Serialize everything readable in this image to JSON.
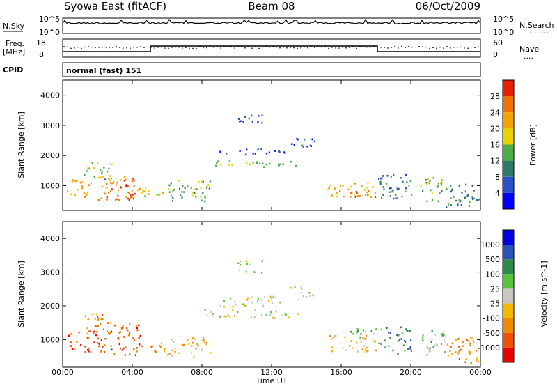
{
  "header": {
    "station": "Syowa East (fitACF)",
    "beam": "Beam 08",
    "date": "06/Oct/2009"
  },
  "strips": {
    "nsky_label": "N.Sky",
    "nsearch_label": "N.Search",
    "nsearch_legend": "........",
    "log_ticks": [
      "10^5",
      "10^0"
    ],
    "freq_label": "Freq.",
    "freq_unit": "[MHz]",
    "freq_ticks": [
      "18",
      "8"
    ],
    "nave_label": "Nave",
    "nave_legend": "....",
    "nave_ticks": [
      "60",
      "0"
    ],
    "cpid_label": "CPID",
    "cpid_value": "normal (fast) 151"
  },
  "chart_data": [
    {
      "type": "heatmap",
      "quantity": "power",
      "xlabel": "Time UT",
      "ylabel": "Slant Range [km]",
      "xticks": [
        "00:00",
        "04:00",
        "08:00",
        "12:00",
        "16:00",
        "20:00",
        "00:00"
      ],
      "xlim": [
        0,
        24
      ],
      "yticks": [
        "1000",
        "2000",
        "3000",
        "4000"
      ],
      "ylim": [
        180,
        4500
      ],
      "colorbar": {
        "label": "Power [dB]",
        "ticks": [
          "28",
          "24",
          "20",
          "16",
          "12",
          "8",
          "4"
        ],
        "colors": [
          "#0000ff",
          "#2a4fc8",
          "#2e7a6a",
          "#4cae48",
          "#e8d200",
          "#f4a400",
          "#f07000",
          "#e82000"
        ]
      },
      "regions": [
        {
          "t0": 0.2,
          "t1": 1.6,
          "r0": 650,
          "r1": 1250,
          "level": 5
        },
        {
          "t0": 1.2,
          "t1": 2.8,
          "r0": 1200,
          "r1": 1800,
          "level": 3
        },
        {
          "t0": 2.0,
          "t1": 4.2,
          "r0": 550,
          "r1": 1400,
          "level": 6
        },
        {
          "t0": 3.0,
          "t1": 4.5,
          "r0": 550,
          "r1": 800,
          "level": 7
        },
        {
          "t0": 4.2,
          "t1": 6.0,
          "r0": 650,
          "r1": 1000,
          "level": 4
        },
        {
          "t0": 6.0,
          "t1": 8.5,
          "r0": 500,
          "r1": 1200,
          "level": 3
        },
        {
          "t0": 8.5,
          "t1": 13.5,
          "r0": 1650,
          "r1": 1850,
          "level": 3
        },
        {
          "t0": 9.0,
          "t1": 13.0,
          "r0": 2050,
          "r1": 2250,
          "level": 1
        },
        {
          "t0": 10.0,
          "t1": 11.5,
          "r0": 3000,
          "r1": 3400,
          "level": 1
        },
        {
          "t0": 13.0,
          "t1": 14.5,
          "r0": 2200,
          "r1": 2600,
          "level": 1
        },
        {
          "t0": 15.2,
          "t1": 18.0,
          "r0": 650,
          "r1": 1150,
          "level": 5
        },
        {
          "t0": 16.5,
          "t1": 18.0,
          "r0": 650,
          "r1": 850,
          "level": 7
        },
        {
          "t0": 18.0,
          "t1": 20.0,
          "r0": 600,
          "r1": 1400,
          "level": 2
        },
        {
          "t0": 20.5,
          "t1": 22.0,
          "r0": 500,
          "r1": 1300,
          "level": 3
        },
        {
          "t0": 22.0,
          "t1": 24.0,
          "r0": 300,
          "r1": 1100,
          "level": 2
        }
      ]
    },
    {
      "type": "heatmap",
      "quantity": "velocity",
      "xlabel": "Time UT",
      "ylabel": "Slant Range [km]",
      "xticks": [
        "00:00",
        "04:00",
        "08:00",
        "12:00",
        "16:00",
        "20:00",
        "00:00"
      ],
      "xlim": [
        0,
        24
      ],
      "yticks": [
        "1000",
        "2000",
        "3000",
        "4000"
      ],
      "ylim": [
        180,
        4500
      ],
      "colorbar": {
        "label": "Velocity [m s^-1]",
        "ticks": [
          "1000",
          "500",
          "100",
          "25",
          "-25",
          "-100",
          "-500",
          "-1000"
        ],
        "colors": [
          "#e80000",
          "#f05000",
          "#f08a00",
          "#f4b800",
          "#c8c8c0",
          "#5cc43c",
          "#2f8a4c",
          "#2c52b8",
          "#0000e0"
        ]
      },
      "regions": [
        {
          "t0": 0.2,
          "t1": 2.0,
          "r0": 650,
          "r1": 1300,
          "level": 1
        },
        {
          "t0": 1.2,
          "t1": 2.8,
          "r0": 1200,
          "r1": 1800,
          "level": 2
        },
        {
          "t0": 2.0,
          "t1": 4.5,
          "r0": 550,
          "r1": 1500,
          "level": 1
        },
        {
          "t0": 4.5,
          "t1": 6.0,
          "r0": 650,
          "r1": 1000,
          "level": 2
        },
        {
          "t0": 6.0,
          "t1": 8.5,
          "r0": 500,
          "r1": 1100,
          "level": 3
        },
        {
          "t0": 8.0,
          "t1": 13.5,
          "r0": 1650,
          "r1": 1900,
          "level": 4
        },
        {
          "t0": 9.0,
          "t1": 13.0,
          "r0": 2000,
          "r1": 2300,
          "level": 4
        },
        {
          "t0": 10.0,
          "t1": 11.5,
          "r0": 3000,
          "r1": 3400,
          "level": 4
        },
        {
          "t0": 13.0,
          "t1": 14.5,
          "r0": 2200,
          "r1": 2600,
          "level": 4
        },
        {
          "t0": 15.2,
          "t1": 18.0,
          "r0": 650,
          "r1": 1150,
          "level": 3
        },
        {
          "t0": 16.5,
          "t1": 18.2,
          "r0": 1000,
          "r1": 1350,
          "level": 5
        },
        {
          "t0": 18.0,
          "t1": 20.0,
          "r0": 600,
          "r1": 1400,
          "level": 6
        },
        {
          "t0": 20.5,
          "t1": 22.0,
          "r0": 500,
          "r1": 1300,
          "level": 5
        },
        {
          "t0": 22.0,
          "t1": 24.0,
          "r0": 300,
          "r1": 1100,
          "level": 2
        }
      ]
    }
  ]
}
